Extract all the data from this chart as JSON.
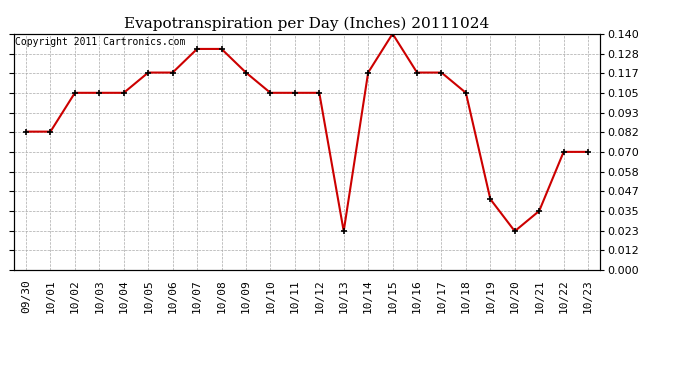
{
  "title": "Evapotranspiration per Day (Inches) 20111024",
  "copyright_text": "Copyright 2011 Cartronics.com",
  "x_labels": [
    "09/30",
    "10/01",
    "10/02",
    "10/03",
    "10/04",
    "10/05",
    "10/06",
    "10/07",
    "10/08",
    "10/09",
    "10/10",
    "10/11",
    "10/12",
    "10/13",
    "10/14",
    "10/15",
    "10/16",
    "10/17",
    "10/18",
    "10/19",
    "10/20",
    "10/21",
    "10/22",
    "10/23"
  ],
  "y_values": [
    0.082,
    0.082,
    0.105,
    0.105,
    0.105,
    0.117,
    0.117,
    0.131,
    0.131,
    0.117,
    0.105,
    0.105,
    0.105,
    0.023,
    0.117,
    0.14,
    0.117,
    0.117,
    0.105,
    0.042,
    0.023,
    0.035,
    0.07,
    0.07
  ],
  "y_ticks": [
    0.0,
    0.012,
    0.023,
    0.035,
    0.047,
    0.058,
    0.07,
    0.082,
    0.093,
    0.105,
    0.117,
    0.128,
    0.14
  ],
  "line_color": "#cc0000",
  "marker_color": "#000000",
  "bg_color": "#ffffff",
  "grid_color": "#aaaaaa",
  "title_fontsize": 11,
  "copyright_fontsize": 7,
  "ylim_min": 0.0,
  "ylim_max": 0.14,
  "tick_label_fontsize": 8
}
